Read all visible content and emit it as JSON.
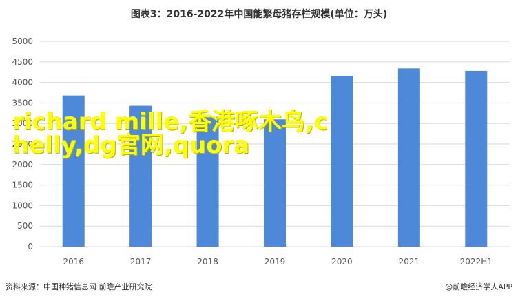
{
  "chart_data": {
    "type": "bar",
    "title": "图表3：2016-2022年中国能繁母猪存栏规模(单位：万头)",
    "categories": [
      "2016",
      "2017",
      "2018",
      "2019",
      "2020",
      "2021",
      "2022H1"
    ],
    "values": [
      3680,
      3430,
      3160,
      3100,
      4160,
      4340,
      4280
    ],
    "ylim": [
      0,
      5000
    ],
    "yticks": [
      0,
      500,
      1000,
      1500,
      2000,
      2500,
      3000,
      3500,
      4000,
      4500,
      5000
    ],
    "grid": true,
    "bar_color": "#4e88d9"
  },
  "overlay_text": "richard mille,香港啄木鸟,chelly,dg官网,quora",
  "footer": {
    "source": "资料来源：中国种猪信息网 前瞻产业研究院",
    "brand": "@前瞻经济学人APP"
  }
}
